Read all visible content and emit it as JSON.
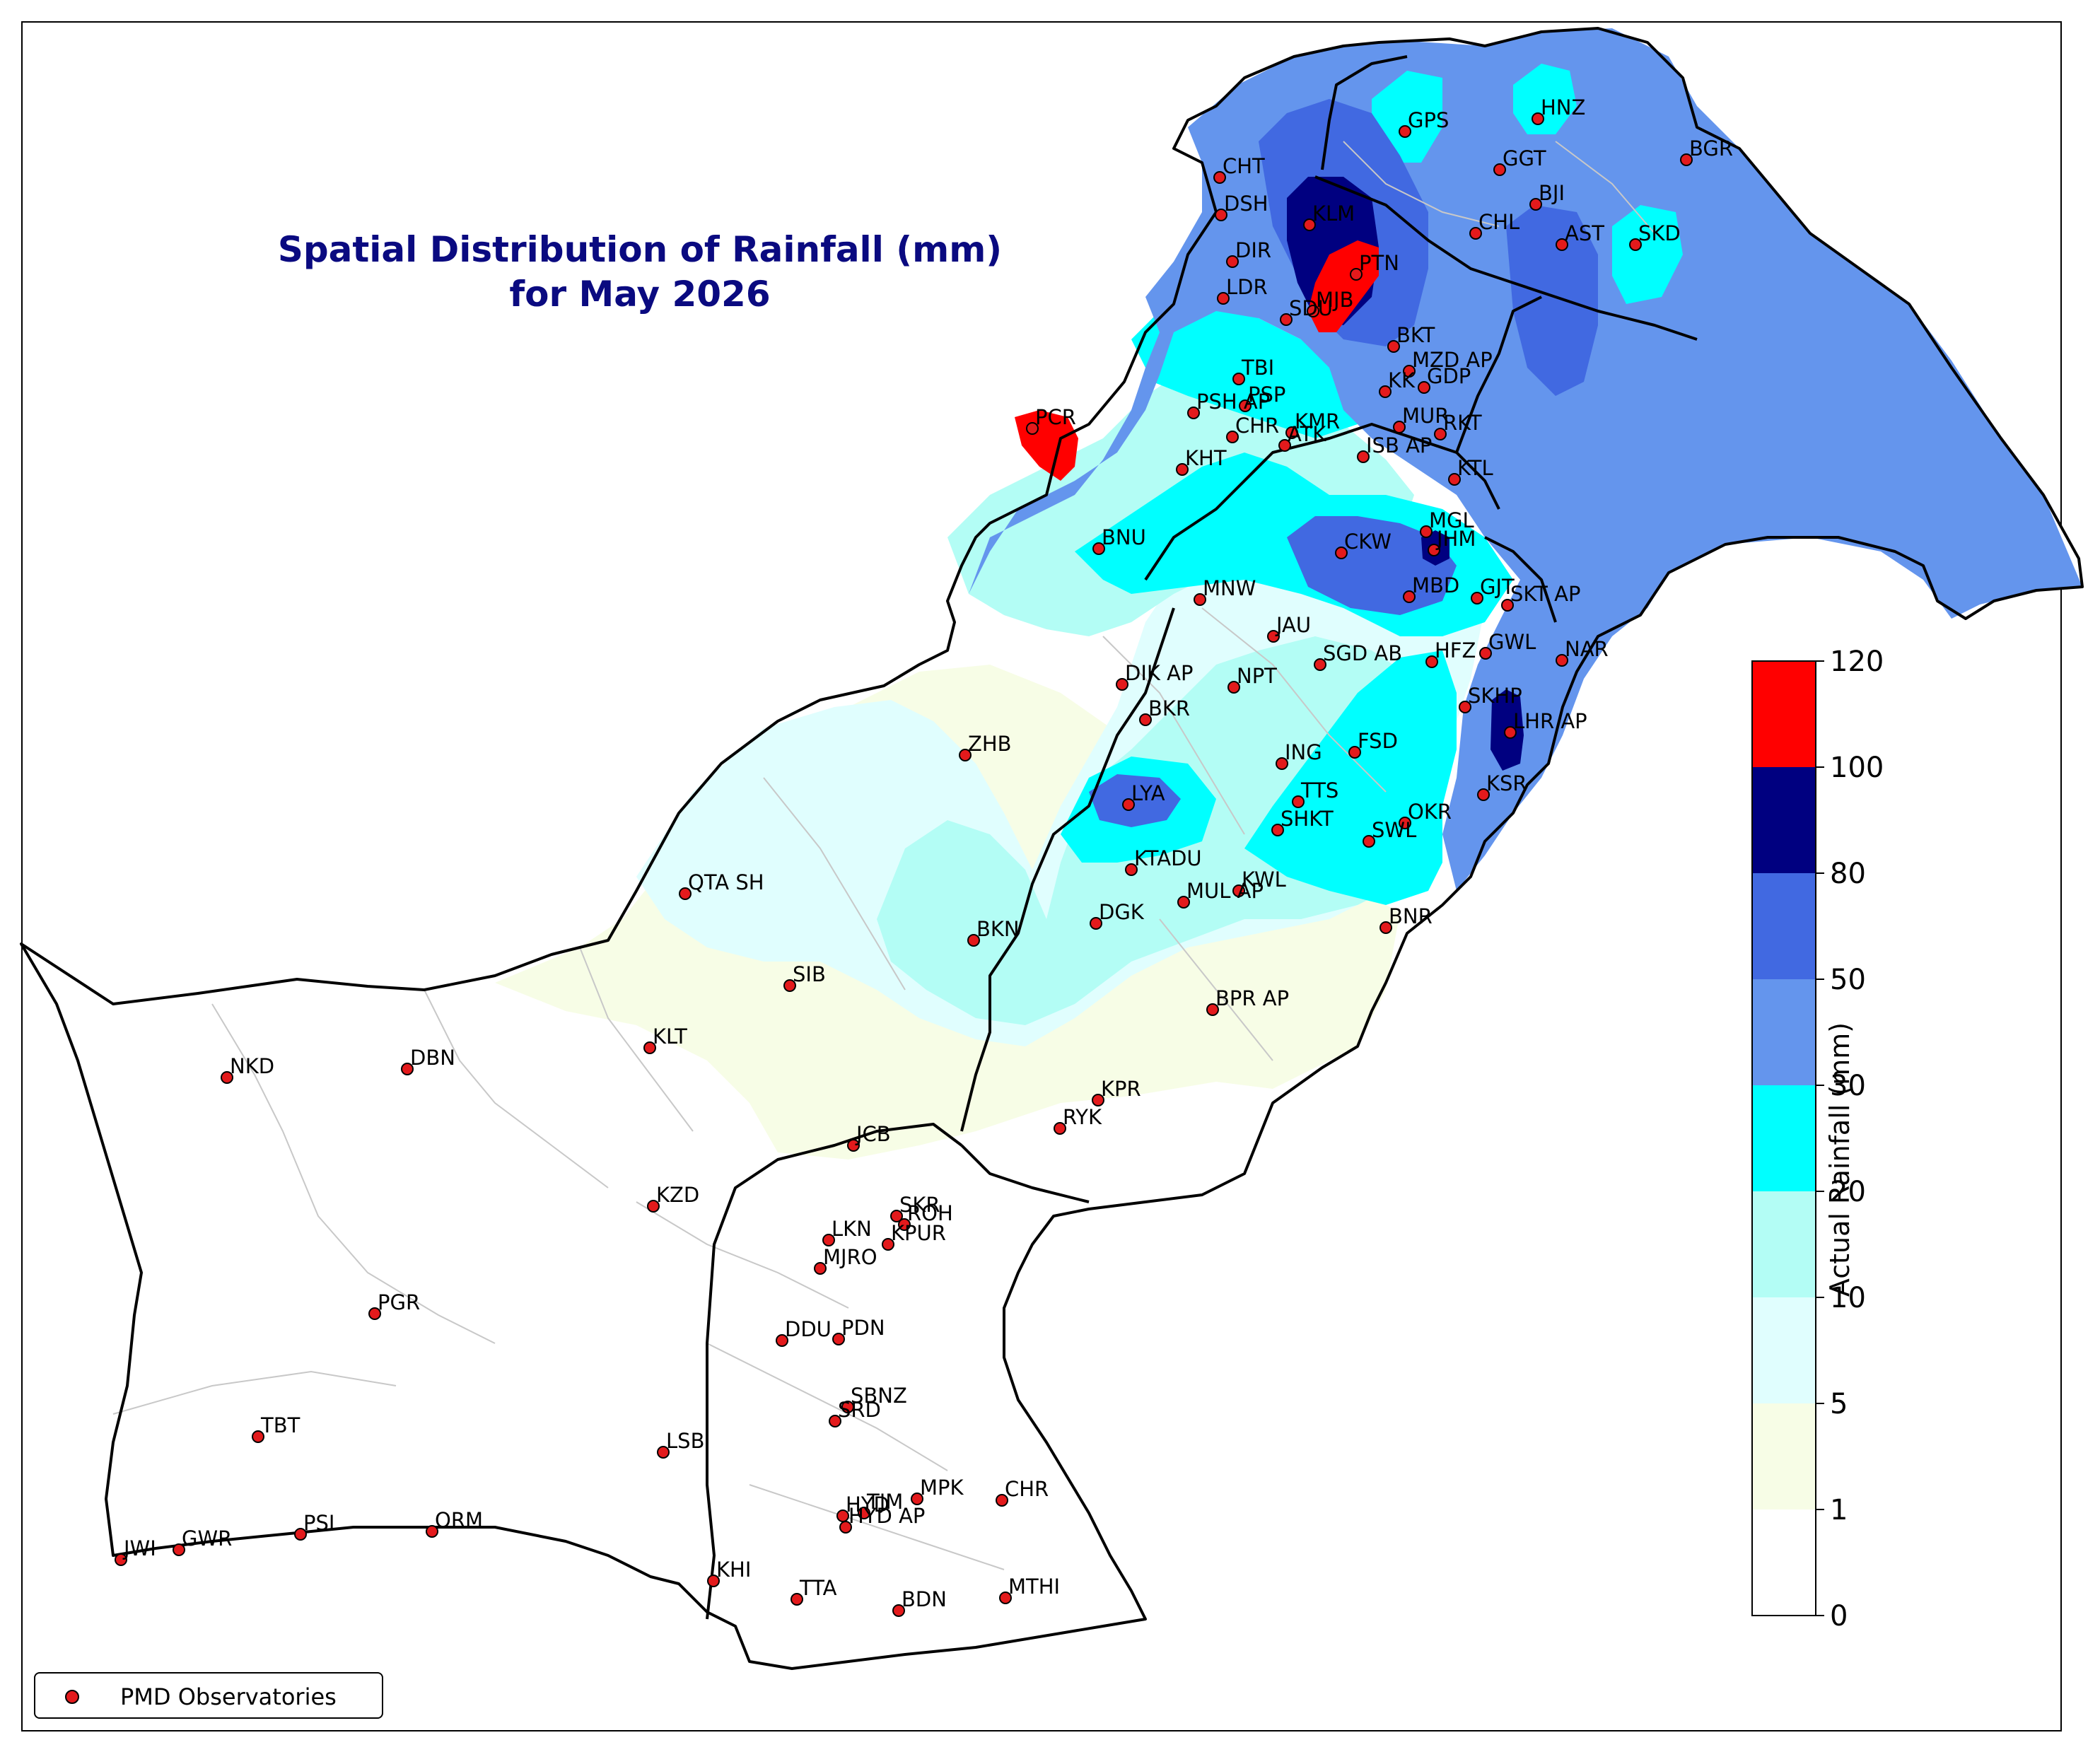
{
  "title": {
    "line1": "Spatial Distribution of Rainfall (mm)",
    "line2": "for May 2026"
  },
  "colorbar": {
    "label": "Actual Rainfall (mm)",
    "levels": [
      "0",
      "1",
      "5",
      "10",
      "20",
      "30",
      "50",
      "80",
      "100",
      "120"
    ],
    "colors": [
      "#ffffff",
      "#f7fde6",
      "#e0fefe",
      "#b3fdf5",
      "#00ffff",
      "#6495ed",
      "#4169e1",
      "#000080",
      "#ff0000"
    ]
  },
  "legend": {
    "label": "PMD Observatories",
    "marker_color": "#e31a1c"
  },
  "colors": {
    "title": "#0a0a80",
    "boundary": "#000000",
    "district_lines": "#c8c8c8"
  },
  "stations": [
    {
      "code": "HNZ"
    },
    {
      "code": "GPS"
    },
    {
      "code": "BGR"
    },
    {
      "code": "GGT"
    },
    {
      "code": "CHT"
    },
    {
      "code": "BJI"
    },
    {
      "code": "DSH"
    },
    {
      "code": "KLM"
    },
    {
      "code": "CHL"
    },
    {
      "code": "AST"
    },
    {
      "code": "SKD"
    },
    {
      "code": "DIR"
    },
    {
      "code": "PTN"
    },
    {
      "code": "LDR"
    },
    {
      "code": "MJB"
    },
    {
      "code": "SDU"
    },
    {
      "code": "BKT"
    },
    {
      "code": "MZD AP"
    },
    {
      "code": "TBI"
    },
    {
      "code": "GDP"
    },
    {
      "code": "KK"
    },
    {
      "code": "PSP"
    },
    {
      "code": "PSH AP"
    },
    {
      "code": "PCR"
    },
    {
      "code": "CHR"
    },
    {
      "code": "KMR"
    },
    {
      "code": "ATK"
    },
    {
      "code": "MUR"
    },
    {
      "code": "RKT"
    },
    {
      "code": "KHT"
    },
    {
      "code": "ISB AP"
    },
    {
      "code": "KTL"
    },
    {
      "code": "BNU"
    },
    {
      "code": "MGL"
    },
    {
      "code": "CKW"
    },
    {
      "code": "JHM"
    },
    {
      "code": "MNW"
    },
    {
      "code": "MBD"
    },
    {
      "code": "GJT"
    },
    {
      "code": "SKT AP"
    },
    {
      "code": "JAU"
    },
    {
      "code": "HFZ"
    },
    {
      "code": "GWL"
    },
    {
      "code": "NAR"
    },
    {
      "code": "SGD AB"
    },
    {
      "code": "DIK AP"
    },
    {
      "code": "NPT"
    },
    {
      "code": "SKHP"
    },
    {
      "code": "LHR AP"
    },
    {
      "code": "BKR"
    },
    {
      "code": "ZHB"
    },
    {
      "code": "ING"
    },
    {
      "code": "FSD"
    },
    {
      "code": "KSR"
    },
    {
      "code": "LYA"
    },
    {
      "code": "TTS"
    },
    {
      "code": "SHKT"
    },
    {
      "code": "OKR"
    },
    {
      "code": "SWL"
    },
    {
      "code": "KTADU"
    },
    {
      "code": "KWL"
    },
    {
      "code": "MUL AP"
    },
    {
      "code": "QTA SH"
    },
    {
      "code": "DGK"
    },
    {
      "code": "BNR"
    },
    {
      "code": "BKN"
    },
    {
      "code": "SIB"
    },
    {
      "code": "BPR AP"
    },
    {
      "code": "KLT"
    },
    {
      "code": "NKD"
    },
    {
      "code": "DBN"
    },
    {
      "code": "KPR"
    },
    {
      "code": "RYK"
    },
    {
      "code": "JCB"
    },
    {
      "code": "KZD"
    },
    {
      "code": "SKR"
    },
    {
      "code": "ROH"
    },
    {
      "code": "LKN"
    },
    {
      "code": "KPUR"
    },
    {
      "code": "MJRO"
    },
    {
      "code": "PGR"
    },
    {
      "code": "DDU"
    },
    {
      "code": "PDN"
    },
    {
      "code": "SBNZ"
    },
    {
      "code": "SRD"
    },
    {
      "code": "TBT"
    },
    {
      "code": "LSB"
    },
    {
      "code": "HYD"
    },
    {
      "code": "TJM"
    },
    {
      "code": "MPK"
    },
    {
      "code": "CHR"
    },
    {
      "code": "HYD AP"
    },
    {
      "code": "PSI"
    },
    {
      "code": "ORM"
    },
    {
      "code": "GWR"
    },
    {
      "code": "JWI"
    },
    {
      "code": "KHI"
    },
    {
      "code": "TTA"
    },
    {
      "code": "BDN"
    },
    {
      "code": "MTHI"
    }
  ]
}
